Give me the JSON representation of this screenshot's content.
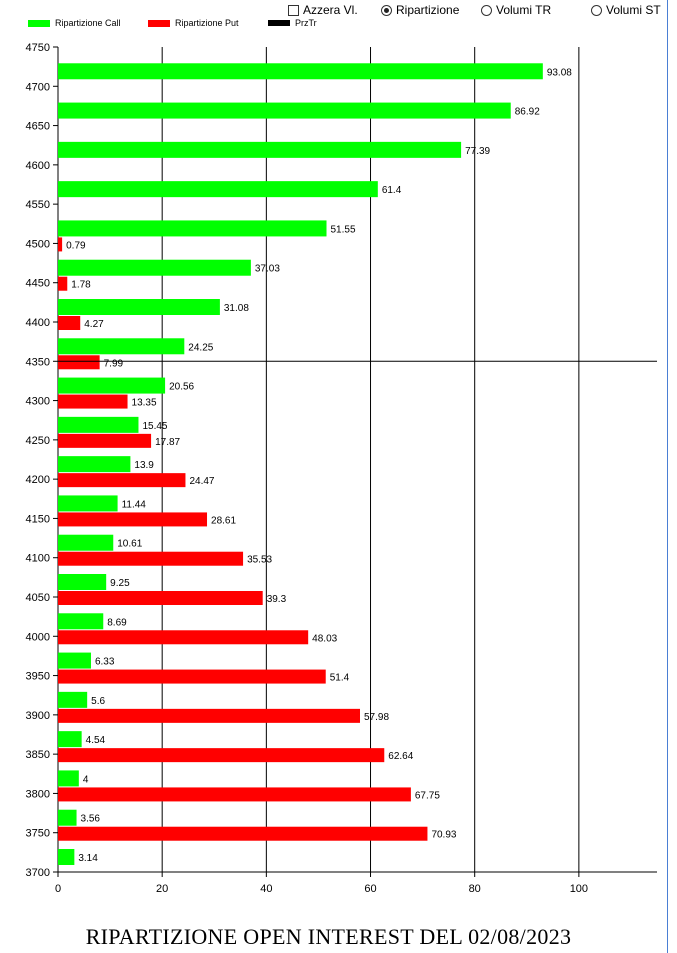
{
  "controls": {
    "azzera": {
      "label": "Azzera Vl.",
      "checked": false
    },
    "ripartizione": {
      "label": "Ripartizione",
      "selected": true
    },
    "volumi_tr": {
      "label": "Volumi TR",
      "selected": false
    },
    "volumi_st": {
      "label": "Volumi ST",
      "selected": false
    }
  },
  "legend": {
    "call": {
      "label": "Ripartizione Call",
      "color": "#00ff00"
    },
    "put": {
      "label": "Ripartizione Put",
      "color": "#ff0000"
    },
    "prztr": {
      "label": "PrzTr",
      "color": "#000000"
    }
  },
  "title": "RIPARTIZIONE OPEN INTEREST DEL 02/08/2023",
  "chart_data": {
    "type": "bar",
    "orientation": "horizontal",
    "xlim": [
      0,
      115
    ],
    "ylim": [
      3700,
      4750
    ],
    "xticks": [
      0,
      20,
      40,
      60,
      80,
      100
    ],
    "yticks": [
      3700,
      3750,
      3800,
      3850,
      3900,
      3950,
      4000,
      4050,
      4100,
      4150,
      4200,
      4250,
      4300,
      4350,
      4400,
      4450,
      4500,
      4550,
      4600,
      4650,
      4700,
      4750
    ],
    "grid": "vertical",
    "legend_position": "top-left",
    "reference_line": {
      "name": "PrzTr",
      "y": 4350
    },
    "categories": [
      4700,
      4650,
      4600,
      4550,
      4500,
      4450,
      4400,
      4350,
      4300,
      4250,
      4200,
      4150,
      4100,
      4050,
      4000,
      3950,
      3900,
      3850,
      3800,
      3750,
      3700
    ],
    "series": [
      {
        "name": "Ripartizione Call",
        "color": "#00ff00",
        "values": [
          93.08,
          86.92,
          77.39,
          61.4,
          51.55,
          37.03,
          31.08,
          24.25,
          20.56,
          15.45,
          13.9,
          11.44,
          10.61,
          9.25,
          8.69,
          6.33,
          5.6,
          4.54,
          4,
          3.56,
          3.14
        ]
      },
      {
        "name": "Ripartizione Put",
        "color": "#ff0000",
        "values": [
          null,
          null,
          null,
          null,
          0.79,
          1.78,
          4.27,
          7.99,
          13.35,
          17.87,
          24.47,
          28.61,
          35.53,
          39.3,
          48.03,
          51.4,
          57.98,
          62.64,
          67.75,
          70.93,
          null
        ]
      }
    ]
  }
}
